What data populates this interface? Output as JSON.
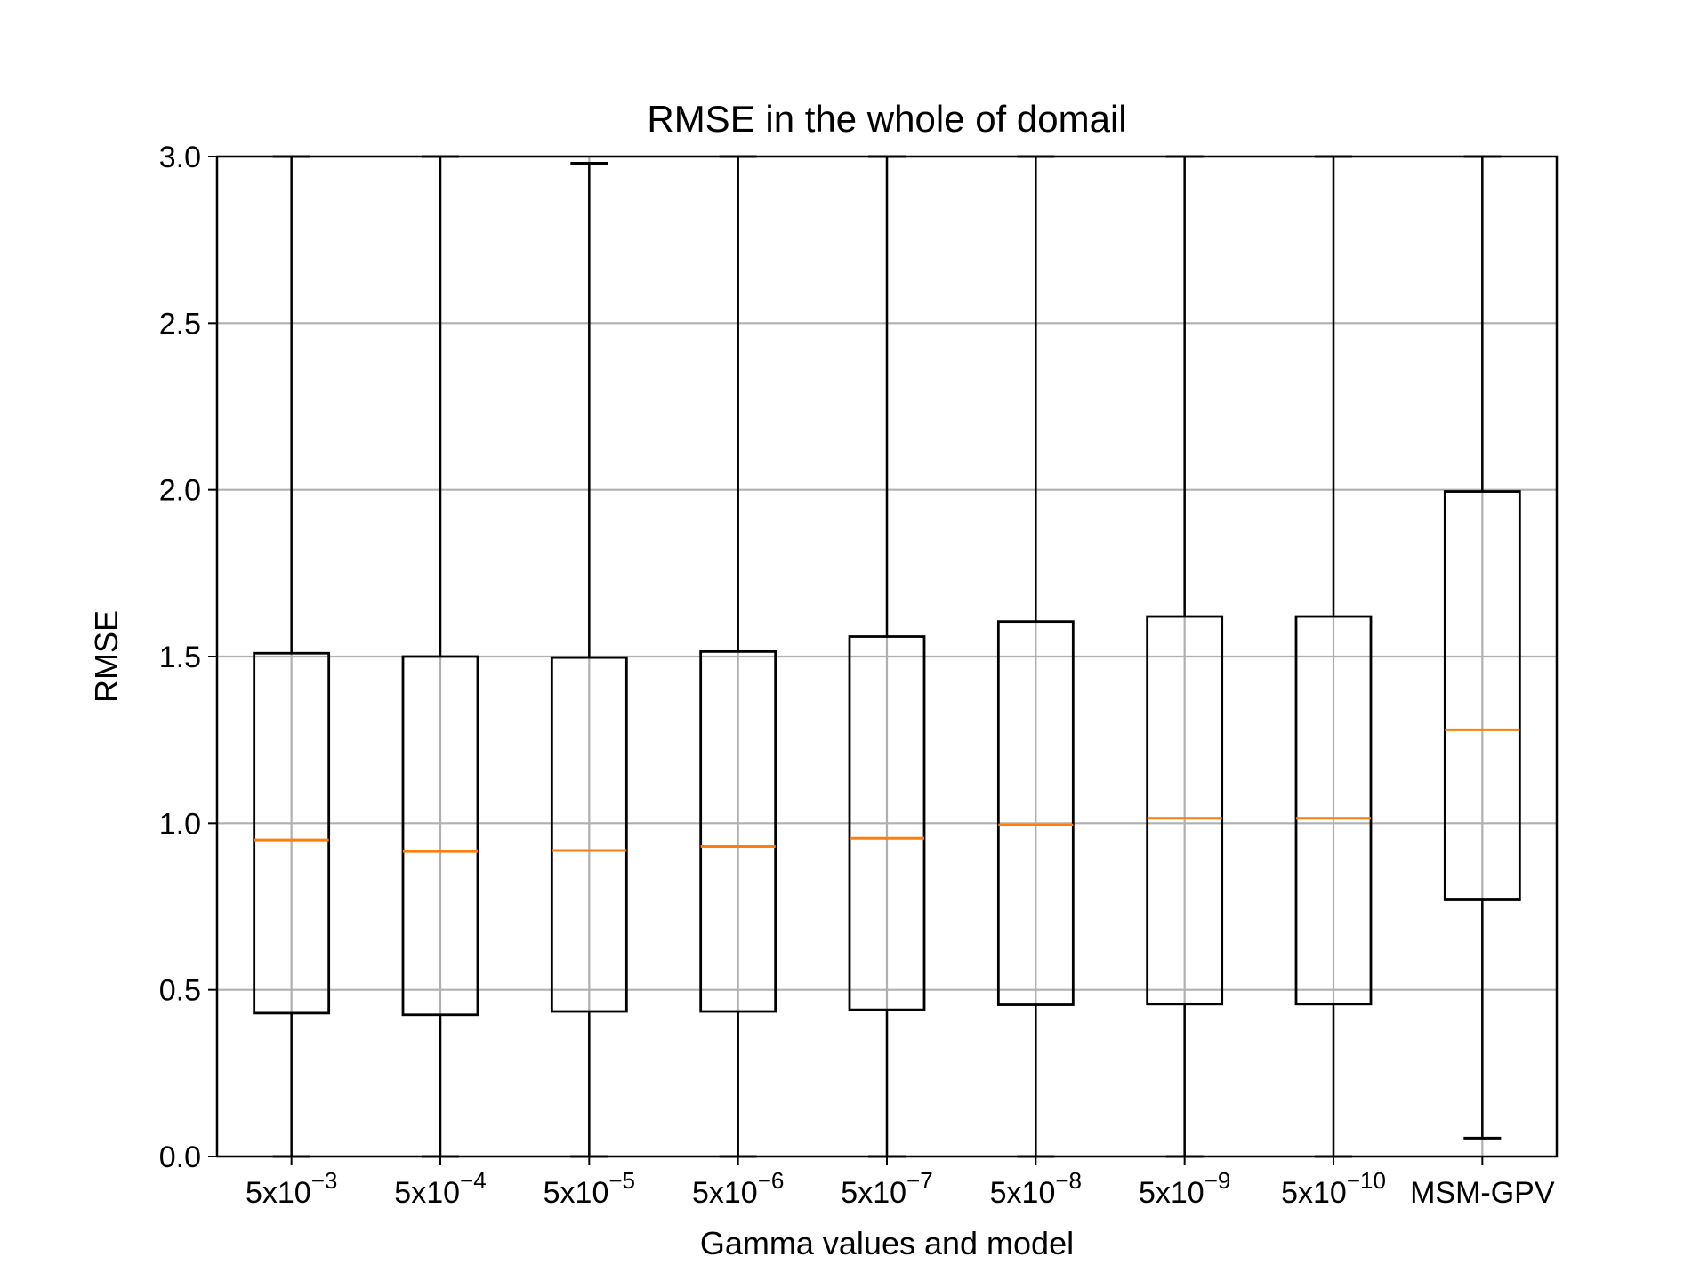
{
  "chart_data": {
    "type": "box",
    "title": "RMSE in the whole of domail",
    "xlabel": "Gamma values and model",
    "ylabel": "RMSE",
    "ylim": [
      0,
      3.0
    ],
    "yticks": [
      "0.0",
      "0.5",
      "1.0",
      "1.5",
      "2.0",
      "2.5",
      "3.0"
    ],
    "grid": true,
    "colors": {
      "box": "#000000",
      "median": "#ff7f0e",
      "grid": "#b0b0b0"
    },
    "categories": [
      {
        "base": "5x10",
        "exp": "−3"
      },
      {
        "base": "5x10",
        "exp": "−4"
      },
      {
        "base": "5x10",
        "exp": "−5"
      },
      {
        "base": "5x10",
        "exp": "−6"
      },
      {
        "base": "5x10",
        "exp": "−7"
      },
      {
        "base": "5x10",
        "exp": "−8"
      },
      {
        "base": "5x10",
        "exp": "−9"
      },
      {
        "base": "5x10",
        "exp": "−10"
      },
      {
        "base": "MSM-GPV",
        "exp": ""
      }
    ],
    "boxes": [
      {
        "whislo": 0.0,
        "q1": 0.43,
        "median": 0.95,
        "q3": 1.51,
        "whishi": 3.0
      },
      {
        "whislo": 0.0,
        "q1": 0.425,
        "median": 0.915,
        "q3": 1.5,
        "whishi": 3.0
      },
      {
        "whislo": 0.0,
        "q1": 0.435,
        "median": 0.918,
        "q3": 1.497,
        "whishi": 2.98
      },
      {
        "whislo": 0.0,
        "q1": 0.435,
        "median": 0.93,
        "q3": 1.515,
        "whishi": 3.0
      },
      {
        "whislo": 0.0,
        "q1": 0.44,
        "median": 0.955,
        "q3": 1.56,
        "whishi": 3.0
      },
      {
        "whislo": 0.0,
        "q1": 0.455,
        "median": 0.995,
        "q3": 1.605,
        "whishi": 3.0
      },
      {
        "whislo": 0.0,
        "q1": 0.457,
        "median": 1.015,
        "q3": 1.62,
        "whishi": 3.0
      },
      {
        "whislo": 0.0,
        "q1": 0.457,
        "median": 1.015,
        "q3": 1.62,
        "whishi": 3.0
      },
      {
        "whislo": 0.055,
        "q1": 0.77,
        "median": 1.28,
        "q3": 1.995,
        "whishi": 3.0
      }
    ]
  }
}
